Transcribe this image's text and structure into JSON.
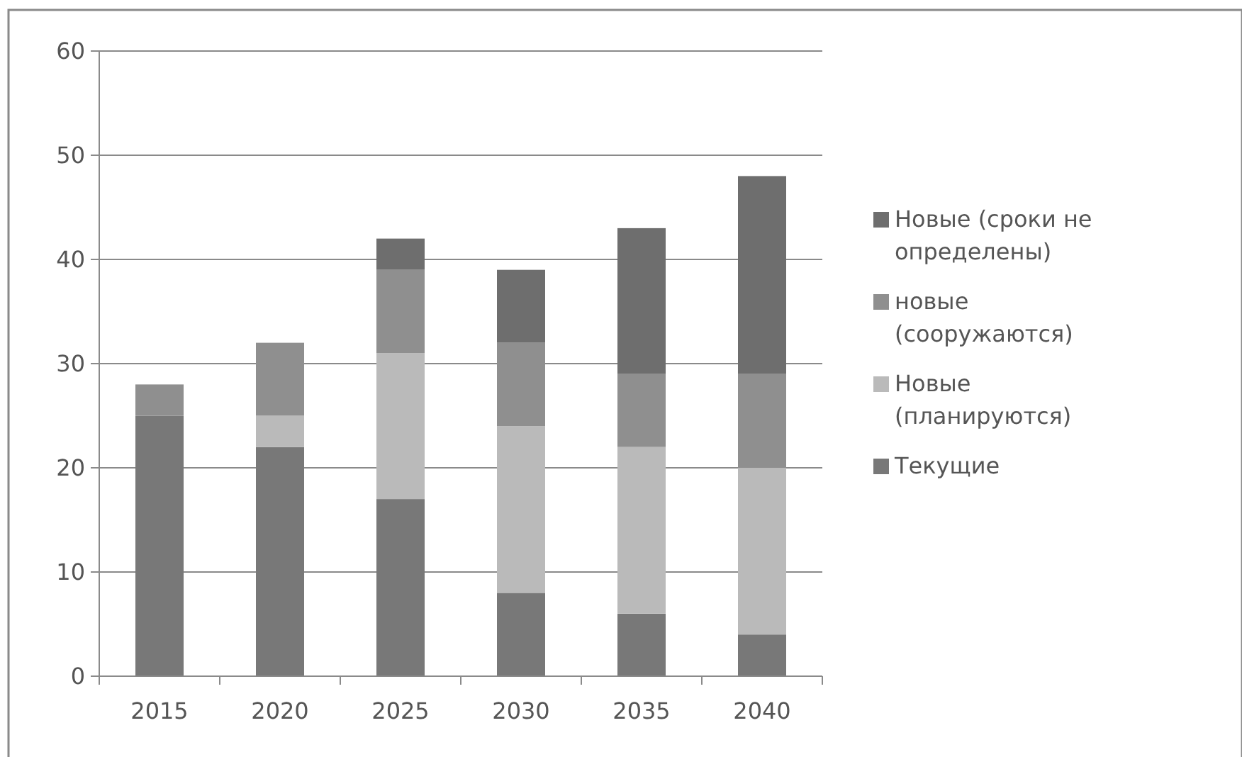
{
  "chart_data": {
    "type": "bar",
    "stacked": true,
    "categories": [
      "2015",
      "2020",
      "2025",
      "2030",
      "2035",
      "2040"
    ],
    "series": [
      {
        "name": "Текущие",
        "color": "#787878",
        "values": [
          25,
          22,
          17,
          8,
          6,
          4
        ]
      },
      {
        "name": "Новые (планируются)",
        "color": "#bababa",
        "values": [
          0,
          3,
          14,
          16,
          16,
          16
        ]
      },
      {
        "name": "новые (сооружаются)",
        "color": "#8f8f8f",
        "values": [
          3,
          7,
          8,
          8,
          7,
          9
        ]
      },
      {
        "name": "Новые (сроки не определены)",
        "color": "#6e6e6e",
        "values": [
          0,
          0,
          3,
          7,
          14,
          19
        ]
      }
    ],
    "ylim": [
      0,
      60
    ],
    "yticks": [
      0,
      10,
      20,
      30,
      40,
      50,
      60
    ],
    "grid": "y",
    "legend": "right"
  }
}
